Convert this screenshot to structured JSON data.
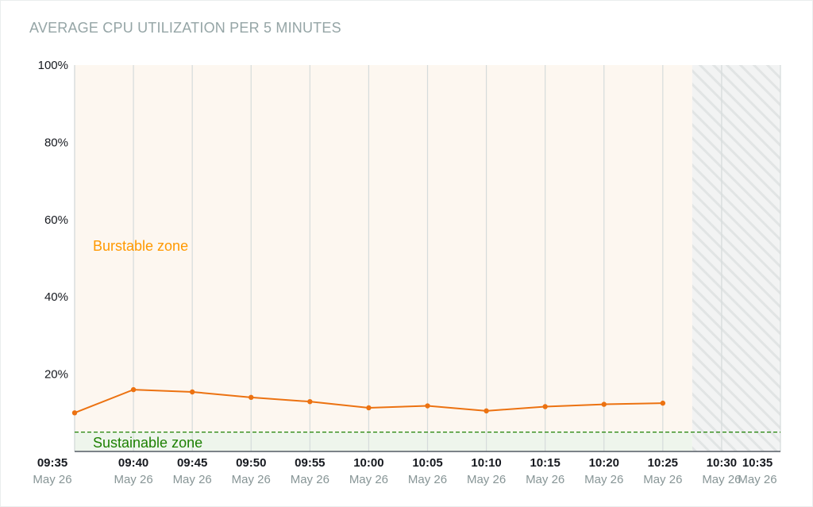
{
  "chart_data": {
    "type": "line",
    "title": "AVERAGE CPU UTILIZATION PER 5 MINUTES",
    "xlabel": "",
    "ylabel": "",
    "ylim": [
      0,
      100
    ],
    "y_ticks": [
      "100%",
      "80%",
      "60%",
      "40%",
      "20%"
    ],
    "y_tick_values": [
      100,
      80,
      60,
      40,
      20
    ],
    "x_ticks": [
      {
        "time": "09:35",
        "date": "May 26"
      },
      {
        "time": "09:40",
        "date": "May 26"
      },
      {
        "time": "09:45",
        "date": "May 26"
      },
      {
        "time": "09:50",
        "date": "May 26"
      },
      {
        "time": "09:55",
        "date": "May 26"
      },
      {
        "time": "10:00",
        "date": "May 26"
      },
      {
        "time": "10:05",
        "date": "May 26"
      },
      {
        "time": "10:10",
        "date": "May 26"
      },
      {
        "time": "10:15",
        "date": "May 26"
      },
      {
        "time": "10:20",
        "date": "May 26"
      },
      {
        "time": "10:25",
        "date": "May 26"
      },
      {
        "time": "10:30",
        "date": "May 26"
      },
      {
        "time": "10:35",
        "date": "May 26"
      }
    ],
    "series": [
      {
        "x": [
          "09:35",
          "09:40",
          "09:45",
          "09:50",
          "09:55",
          "10:00",
          "10:05",
          "10:10",
          "10:15",
          "10:20",
          "10:25"
        ],
        "values": [
          10,
          16,
          15.4,
          14,
          12.9,
          11.3,
          11.8,
          10.5,
          11.6,
          12.2,
          12.5
        ],
        "color": "#ec7211"
      }
    ],
    "baseline": 5,
    "zones": {
      "burstable_label": "Burstable zone",
      "sustainable_label": "Sustainable zone",
      "burstable_color": "#ff9900",
      "sustainable_color": "#1d8102"
    },
    "grid": true,
    "forecast_region_start": "10:30"
  }
}
